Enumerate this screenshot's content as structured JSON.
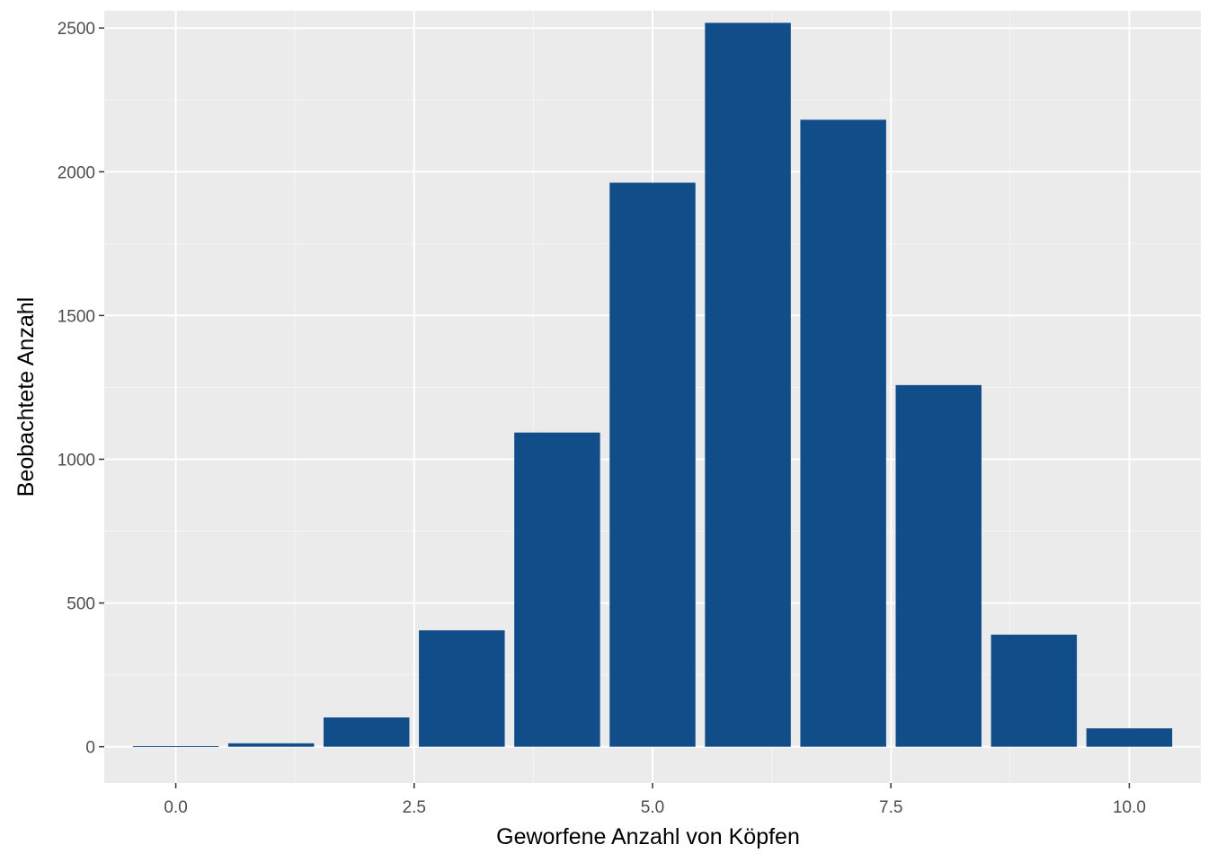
{
  "chart_data": {
    "type": "bar",
    "title": "",
    "xlabel": "Geworfene Anzahl von Köpfen",
    "ylabel": "Beobachtete Anzahl",
    "x": [
      0,
      1,
      2,
      3,
      4,
      5,
      6,
      7,
      8,
      9,
      10
    ],
    "values": [
      2,
      12,
      102,
      405,
      1093,
      1962,
      2518,
      2181,
      1258,
      390,
      64
    ],
    "xlim": [
      -0.75,
      10.75
    ],
    "ylim": [
      -126,
      2560
    ],
    "x_ticks": [
      {
        "value": 0,
        "label": "0.0"
      },
      {
        "value": 2.5,
        "label": "2.5"
      },
      {
        "value": 5,
        "label": "5.0"
      },
      {
        "value": 7.5,
        "label": "7.5"
      },
      {
        "value": 10,
        "label": "10.0"
      }
    ],
    "y_ticks": [
      {
        "value": 0,
        "label": "0"
      },
      {
        "value": 500,
        "label": "500"
      },
      {
        "value": 1000,
        "label": "1000"
      },
      {
        "value": 1500,
        "label": "1500"
      },
      {
        "value": 2000,
        "label": "2000"
      },
      {
        "value": 2500,
        "label": "2500"
      }
    ],
    "bar_width": 0.9,
    "grid": true,
    "legend": "none",
    "colors": {
      "bar": "#114e89",
      "panel": "#ebebeb",
      "grid_major": "#ffffff",
      "grid_minor": "#f5f5f5"
    }
  }
}
